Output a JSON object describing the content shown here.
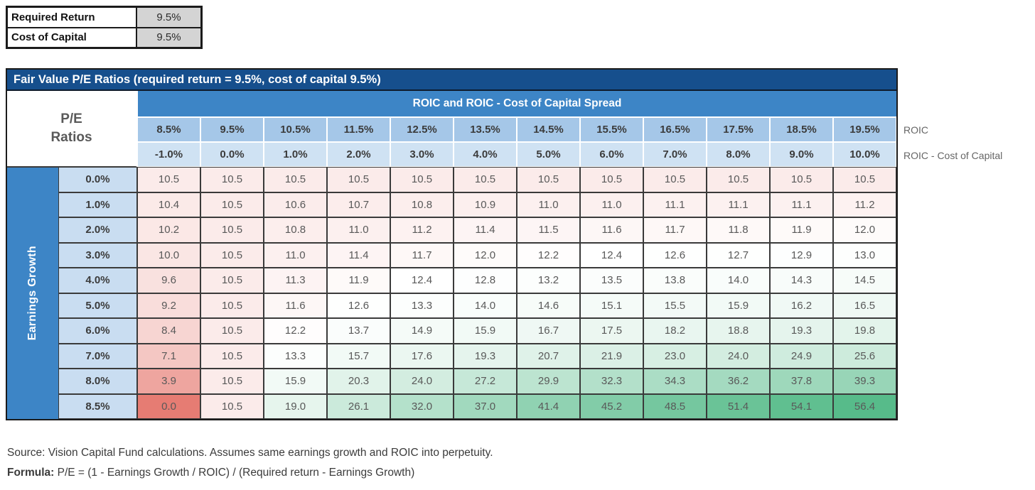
{
  "inputs_table": {
    "rows": [
      {
        "label": "Required Return",
        "value": "9.5%"
      },
      {
        "label": "Cost of Capital",
        "value": "9.5%"
      }
    ]
  },
  "matrix_table": {
    "title": "Fair Value P/E Ratios (required return = 9.5%, cost of capital 9.5%)",
    "corner_label_line1": "P/E",
    "corner_label_line2": "Ratios",
    "column_banner": "ROIC and ROIC - Cost of Capital Spread",
    "row_banner": "Earnings Growth",
    "side_label_roic": "ROIC",
    "side_label_spread": "ROIC - Cost of Capital"
  },
  "chart_data": {
    "type": "heatmap",
    "title": "Fair Value P/E Ratios (required return = 9.5%, cost of capital 9.5%)",
    "x_axis_label": "ROIC and ROIC - Cost of Capital Spread",
    "y_axis_label": "Earnings Growth",
    "columns_roic": [
      "8.5%",
      "9.5%",
      "10.5%",
      "11.5%",
      "12.5%",
      "13.5%",
      "14.5%",
      "15.5%",
      "16.5%",
      "17.5%",
      "18.5%",
      "19.5%"
    ],
    "columns_spread": [
      "-1.0%",
      "0.0%",
      "1.0%",
      "2.0%",
      "3.0%",
      "4.0%",
      "5.0%",
      "6.0%",
      "7.0%",
      "8.0%",
      "9.0%",
      "10.0%"
    ],
    "rows_earnings_growth": [
      "0.0%",
      "1.0%",
      "2.0%",
      "3.0%",
      "4.0%",
      "5.0%",
      "6.0%",
      "7.0%",
      "8.0%",
      "8.5%"
    ],
    "values": [
      [
        10.5,
        10.5,
        10.5,
        10.5,
        10.5,
        10.5,
        10.5,
        10.5,
        10.5,
        10.5,
        10.5,
        10.5
      ],
      [
        10.4,
        10.5,
        10.6,
        10.7,
        10.8,
        10.9,
        11.0,
        11.0,
        11.1,
        11.1,
        11.1,
        11.2
      ],
      [
        10.2,
        10.5,
        10.8,
        11.0,
        11.2,
        11.4,
        11.5,
        11.6,
        11.7,
        11.8,
        11.9,
        12.0
      ],
      [
        10.0,
        10.5,
        11.0,
        11.4,
        11.7,
        12.0,
        12.2,
        12.4,
        12.6,
        12.7,
        12.9,
        13.0
      ],
      [
        9.6,
        10.5,
        11.3,
        11.9,
        12.4,
        12.8,
        13.2,
        13.5,
        13.8,
        14.0,
        14.3,
        14.5
      ],
      [
        9.2,
        10.5,
        11.6,
        12.6,
        13.3,
        14.0,
        14.6,
        15.1,
        15.5,
        15.9,
        16.2,
        16.5
      ],
      [
        8.4,
        10.5,
        12.2,
        13.7,
        14.9,
        15.9,
        16.7,
        17.5,
        18.2,
        18.8,
        19.3,
        19.8
      ],
      [
        7.1,
        10.5,
        13.3,
        15.7,
        17.6,
        19.3,
        20.7,
        21.9,
        23.0,
        24.0,
        24.9,
        25.6
      ],
      [
        3.9,
        10.5,
        15.9,
        20.3,
        24.0,
        27.2,
        29.9,
        32.3,
        34.3,
        36.2,
        37.8,
        39.3
      ],
      [
        0.0,
        10.5,
        19.0,
        26.1,
        32.0,
        37.0,
        41.4,
        45.2,
        48.5,
        51.4,
        54.1,
        56.4
      ]
    ],
    "value_decimals": 1,
    "legend_position": "none",
    "grid": true,
    "colorscale": {
      "type": "3-color",
      "min_color": "#E67C73",
      "mid_color": "#FFFFFF",
      "max_color": "#57BB8A",
      "min_value": 0.0,
      "mid_value": 12.4,
      "max_value": 56.4
    }
  },
  "footnotes": {
    "source": "Source: Vision Capital Fund calculations. Assumes same earnings growth and ROIC into perpetuity.",
    "formula_label": "Formula:",
    "formula_text": " P/E = (1 - Earnings Growth / ROIC) / (Required return - Earnings Growth)"
  },
  "colors": {
    "title_bar": "#164F8D",
    "banner_blue": "#3D85C6",
    "roic_header_blue": "#A5C7E8",
    "spread_header_blue": "#CFE2F3",
    "row_label_blue": "#C9DDF1",
    "input_value_gray": "#D4D4D4",
    "grid_border": "#3A3A3A"
  }
}
